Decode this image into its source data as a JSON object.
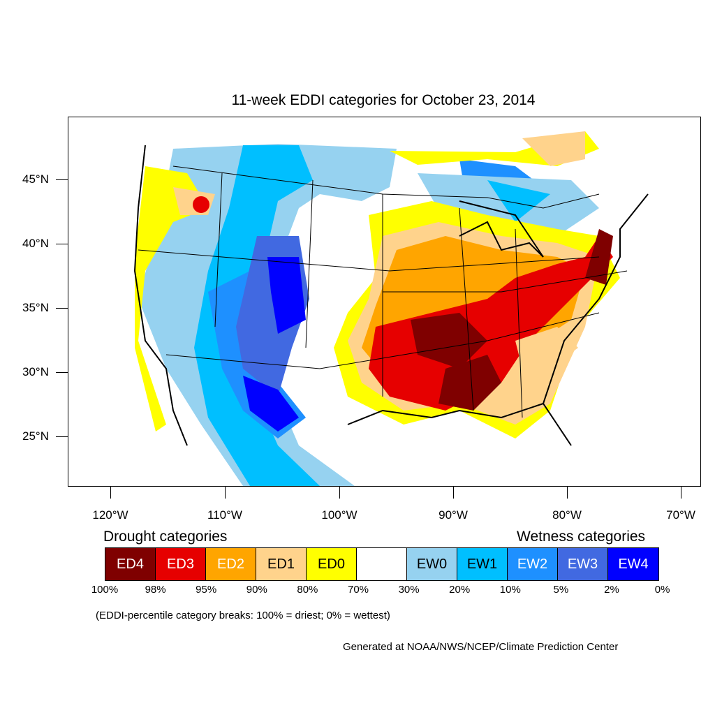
{
  "title": "11-week EDDI categories for October 23, 2014",
  "latitude_labels": [
    "45°N",
    "40°N",
    "35°N",
    "30°N",
    "25°N"
  ],
  "longitude_labels": [
    "120°W",
    "110°W",
    "100°W",
    "90°W",
    "80°W",
    "70°W"
  ],
  "legend": {
    "drought_heading": "Drought categories",
    "wetness_heading": "Wetness categories",
    "categories": [
      {
        "label": "ED4",
        "color": "#7f0000",
        "text_color": "#ffffff"
      },
      {
        "label": "ED3",
        "color": "#e60000",
        "text_color": "#ffffff"
      },
      {
        "label": "ED2",
        "color": "#ffa500",
        "text_color": "#ffffff"
      },
      {
        "label": "ED1",
        "color": "#ffd38c",
        "text_color": "#000000"
      },
      {
        "label": "ED0",
        "color": "#ffff00",
        "text_color": "#000000"
      },
      {
        "label": "",
        "color": "#ffffff",
        "text_color": "#000000"
      },
      {
        "label": "EW0",
        "color": "#96d2f0",
        "text_color": "#000000"
      },
      {
        "label": "EW1",
        "color": "#00bfff",
        "text_color": "#000000"
      },
      {
        "label": "EW2",
        "color": "#1e90ff",
        "text_color": "#ffffff"
      },
      {
        "label": "EW3",
        "color": "#4169e1",
        "text_color": "#ffffff"
      },
      {
        "label": "EW4",
        "color": "#0000ff",
        "text_color": "#ffffff"
      }
    ],
    "breaks": [
      "100%",
      "98%",
      "95%",
      "90%",
      "80%",
      "70%",
      "30%",
      "20%",
      "10%",
      "5%",
      "2%",
      "0%"
    ],
    "note": "(EDDI-percentile category breaks: 100% = driest; 0% = wettest)"
  },
  "credit": "Generated at NOAA/NWS/NCEP/Climate Prediction Center"
}
